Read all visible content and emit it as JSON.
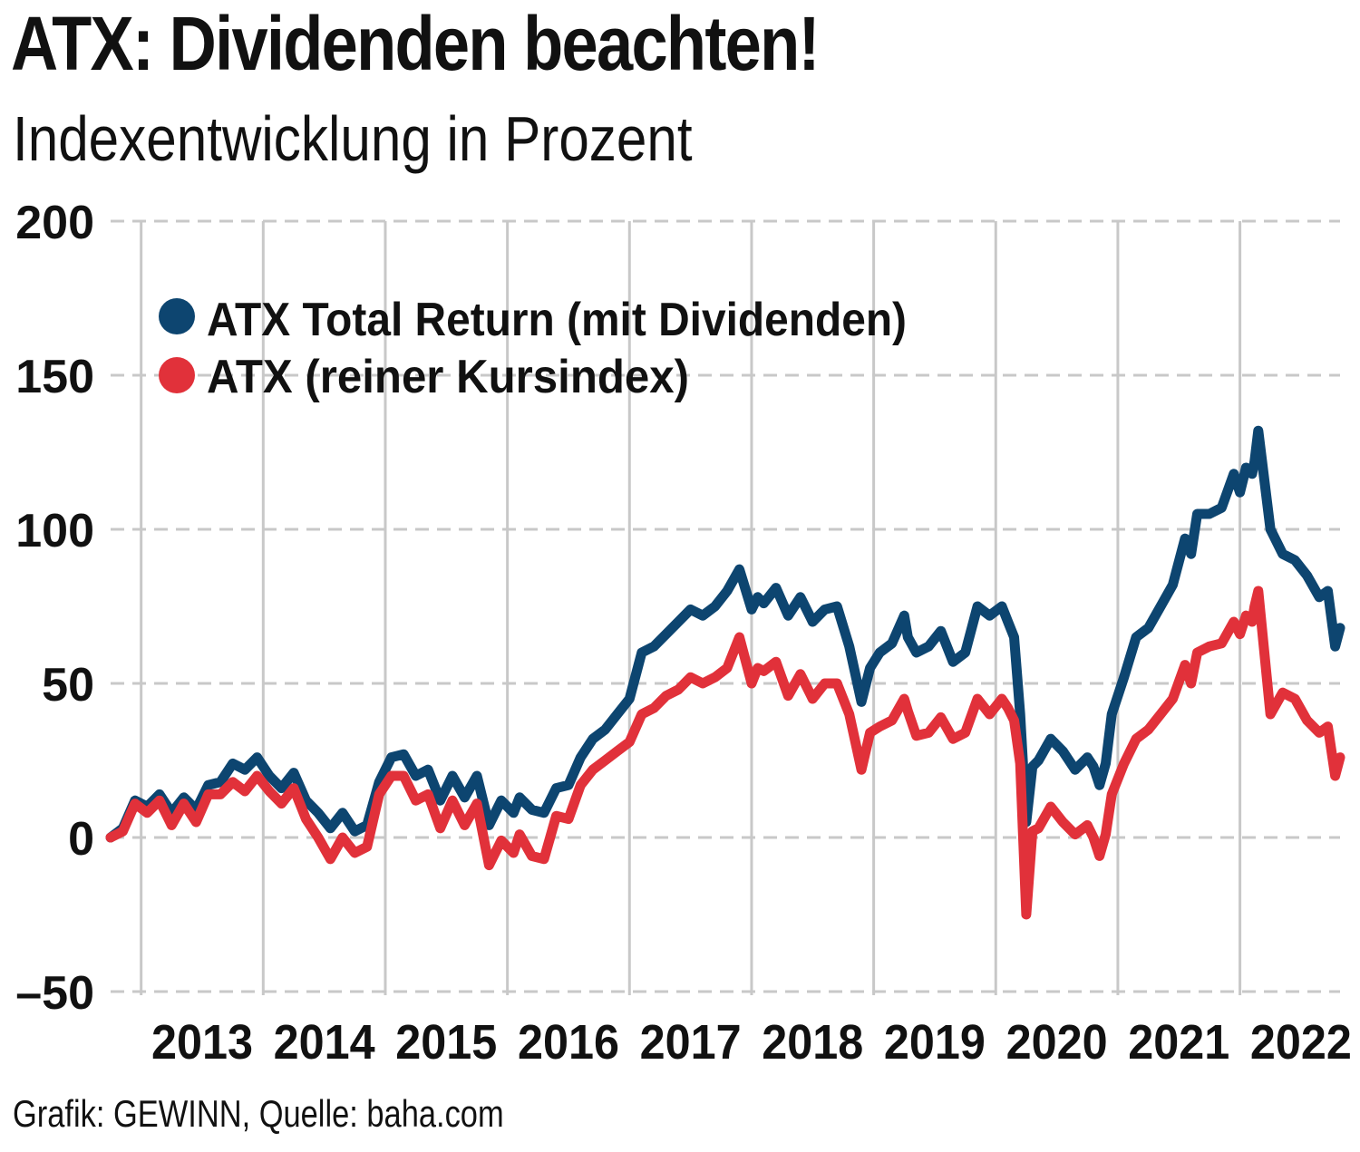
{
  "header": {
    "title": "ATX: Dividenden beachten!",
    "subtitle": "Indexentwicklung in Prozent"
  },
  "footer": {
    "source": "Grafik: GEWINN, Quelle: baha.com"
  },
  "chart_data": {
    "type": "line",
    "title": "ATX: Dividenden beachten!",
    "subtitle": "Indexentwicklung in Prozent",
    "ylim": [
      -50,
      200
    ],
    "xlim": [
      2012.75,
      2022.82
    ],
    "y_ticks": [
      -50,
      0,
      50,
      100,
      150,
      200
    ],
    "y_tick_labels": [
      "–50",
      "0",
      "50",
      "100",
      "150",
      "200"
    ],
    "x_tick_labels": [
      "2013",
      "2014",
      "2015",
      "2016",
      "2017",
      "2018",
      "2019",
      "2020",
      "2021",
      "2022"
    ],
    "year_boundaries": [
      2013,
      2014,
      2015,
      2016,
      2017,
      2018,
      2019,
      2020,
      2021,
      2022
    ],
    "grid": {
      "horizontal": "dashed",
      "vertical": "solid"
    },
    "legend_position": "top-left",
    "colors": {
      "total_return": "#0d4570",
      "price_index": "#e1313a",
      "grid": "#c8c8c8"
    },
    "series": [
      {
        "name": "ATX Total Return (mit Dividenden)",
        "color": "#0d4570",
        "x": [
          2012.75,
          2012.85,
          2012.95,
          2013.05,
          2013.15,
          2013.25,
          2013.35,
          2013.45,
          2013.55,
          2013.65,
          2013.75,
          2013.85,
          2013.95,
          2014.05,
          2014.15,
          2014.25,
          2014.35,
          2014.45,
          2014.55,
          2014.65,
          2014.75,
          2014.85,
          2014.95,
          2015.05,
          2015.15,
          2015.25,
          2015.35,
          2015.45,
          2015.55,
          2015.65,
          2015.75,
          2015.85,
          2015.95,
          2016.05,
          2016.1,
          2016.2,
          2016.3,
          2016.4,
          2016.5,
          2016.6,
          2016.7,
          2016.8,
          2016.9,
          2017.0,
          2017.1,
          2017.2,
          2017.3,
          2017.4,
          2017.5,
          2017.6,
          2017.7,
          2017.8,
          2017.9,
          2018.0,
          2018.05,
          2018.1,
          2018.2,
          2018.3,
          2018.4,
          2018.5,
          2018.6,
          2018.7,
          2018.8,
          2018.9,
          2018.97,
          2019.05,
          2019.15,
          2019.25,
          2019.28,
          2019.35,
          2019.45,
          2019.55,
          2019.65,
          2019.75,
          2019.85,
          2019.95,
          2020.05,
          2020.1,
          2020.15,
          2020.2,
          2020.25,
          2020.3,
          2020.35,
          2020.45,
          2020.55,
          2020.65,
          2020.75,
          2020.8,
          2020.85,
          2020.9,
          2020.95,
          2021.05,
          2021.15,
          2021.25,
          2021.35,
          2021.45,
          2021.55,
          2021.6,
          2021.65,
          2021.75,
          2021.85,
          2021.95,
          2022.0,
          2022.05,
          2022.1,
          2022.12,
          2022.15,
          2022.25,
          2022.35,
          2022.45,
          2022.55,
          2022.65,
          2022.72,
          2022.78,
          2022.82
        ],
        "values": [
          0,
          3,
          12,
          10,
          14,
          8,
          13,
          9,
          17,
          18,
          24,
          22,
          26,
          20,
          16,
          21,
          12,
          8,
          3,
          8,
          2,
          4,
          18,
          26,
          27,
          20,
          22,
          12,
          20,
          13,
          20,
          4,
          12,
          8,
          13,
          9,
          8,
          16,
          17,
          26,
          32,
          35,
          40,
          45,
          60,
          62,
          66,
          70,
          74,
          72,
          75,
          80,
          87,
          74,
          78,
          76,
          81,
          72,
          78,
          70,
          74,
          75,
          62,
          44,
          55,
          60,
          63,
          72,
          65,
          60,
          62,
          67,
          57,
          60,
          75,
          72,
          75,
          70,
          65,
          40,
          5,
          23,
          25,
          32,
          28,
          22,
          26,
          23,
          17,
          24,
          40,
          52,
          65,
          68,
          75,
          82,
          97,
          92,
          105,
          105,
          107,
          118,
          112,
          120,
          118,
          122,
          132,
          100,
          92,
          90,
          85,
          78,
          80,
          62,
          68
        ]
      },
      {
        "name": "ATX (reiner Kursindex)",
        "color": "#e1313a",
        "x": [
          2012.75,
          2012.85,
          2012.95,
          2013.05,
          2013.15,
          2013.25,
          2013.35,
          2013.45,
          2013.55,
          2013.65,
          2013.75,
          2013.85,
          2013.95,
          2014.05,
          2014.15,
          2014.25,
          2014.35,
          2014.45,
          2014.55,
          2014.65,
          2014.75,
          2014.85,
          2014.95,
          2015.05,
          2015.15,
          2015.25,
          2015.35,
          2015.45,
          2015.55,
          2015.65,
          2015.75,
          2015.85,
          2015.95,
          2016.05,
          2016.1,
          2016.2,
          2016.3,
          2016.4,
          2016.5,
          2016.6,
          2016.7,
          2016.8,
          2016.9,
          2017.0,
          2017.1,
          2017.2,
          2017.3,
          2017.4,
          2017.5,
          2017.6,
          2017.7,
          2017.8,
          2017.9,
          2018.0,
          2018.05,
          2018.1,
          2018.2,
          2018.3,
          2018.4,
          2018.5,
          2018.6,
          2018.7,
          2018.8,
          2018.9,
          2018.97,
          2019.05,
          2019.15,
          2019.25,
          2019.28,
          2019.35,
          2019.45,
          2019.55,
          2019.65,
          2019.75,
          2019.85,
          2019.95,
          2020.05,
          2020.1,
          2020.15,
          2020.2,
          2020.25,
          2020.3,
          2020.35,
          2020.45,
          2020.55,
          2020.65,
          2020.75,
          2020.8,
          2020.85,
          2020.9,
          2020.95,
          2021.05,
          2021.15,
          2021.25,
          2021.35,
          2021.45,
          2021.55,
          2021.6,
          2021.65,
          2021.75,
          2021.85,
          2021.95,
          2022.0,
          2022.05,
          2022.1,
          2022.12,
          2022.15,
          2022.25,
          2022.35,
          2022.45,
          2022.55,
          2022.65,
          2022.72,
          2022.78,
          2022.82
        ],
        "values": [
          0,
          2,
          11,
          8,
          12,
          4,
          11,
          5,
          14,
          14,
          18,
          15,
          20,
          15,
          11,
          16,
          6,
          0,
          -7,
          0,
          -5,
          -3,
          14,
          20,
          20,
          12,
          14,
          3,
          12,
          4,
          11,
          -9,
          -1,
          -5,
          1,
          -6,
          -7,
          7,
          6,
          17,
          22,
          25,
          28,
          31,
          40,
          42,
          46,
          48,
          52,
          50,
          52,
          55,
          65,
          50,
          55,
          54,
          57,
          46,
          53,
          45,
          50,
          50,
          40,
          22,
          34,
          36,
          38,
          45,
          41,
          33,
          34,
          39,
          32,
          34,
          45,
          40,
          45,
          42,
          38,
          24,
          -25,
          2,
          3,
          10,
          5,
          1,
          4,
          0,
          -6,
          1,
          14,
          24,
          32,
          35,
          40,
          45,
          56,
          50,
          60,
          62,
          63,
          70,
          66,
          72,
          70,
          75,
          80,
          40,
          47,
          45,
          38,
          34,
          36,
          20,
          26
        ]
      }
    ]
  }
}
